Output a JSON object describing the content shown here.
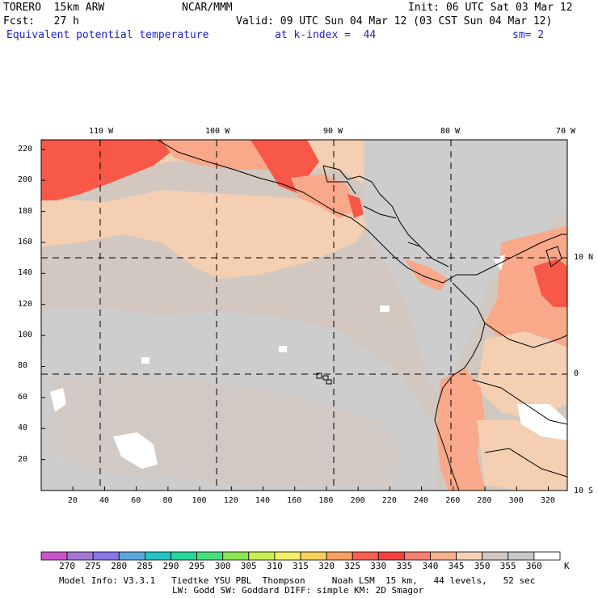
{
  "header": {
    "model": "TORERO  15km ARW",
    "center": "NCAR/MMM",
    "init": "Init: 06 UTC Sat 03 Mar 12",
    "fcst": "Fcst:   27 h",
    "valid": "Valid: 09 UTC Sun 04 Mar 12 (03 CST Sun 04 Mar 12)",
    "field": "Equivalent potential temperature",
    "level": "at k-index =  44",
    "smoothing": "sm= 2"
  },
  "axes": {
    "top_labels": [
      "110 W",
      "100 W",
      "90 W",
      "80 W",
      "70 W"
    ],
    "right_labels": [
      "10 N",
      "0",
      "10 S"
    ],
    "left_ticks": [
      "220",
      "200",
      "180",
      "160",
      "140",
      "120",
      "100",
      "80",
      "60",
      "40",
      "20"
    ],
    "bottom_ticks": [
      "20",
      "40",
      "60",
      "80",
      "100",
      "120",
      "140",
      "160",
      "180",
      "200",
      "220",
      "240",
      "260",
      "280",
      "300",
      "320"
    ]
  },
  "colorbar": {
    "labels": [
      "270",
      "275",
      "280",
      "285",
      "290",
      "295",
      "300",
      "305",
      "310",
      "315",
      "320",
      "325",
      "330",
      "335",
      "340",
      "345",
      "350",
      "355",
      "360"
    ],
    "unit": "K",
    "colors": [
      "#cc55cc",
      "#a277d6",
      "#8877e6",
      "#5aa8e0",
      "#22c4c4",
      "#22d89a",
      "#44e07a",
      "#88e655",
      "#ccee55",
      "#f0f066",
      "#f8d05a",
      "#f8a060",
      "#f86050",
      "#f84040",
      "#f88070",
      "#f8b090",
      "#f5d0b5",
      "#d0c8c0",
      "#c8c8c8",
      "#ffffff"
    ]
  },
  "map_colors": {
    "bg": "#d2c8c0",
    "peach": "#f4cfb2",
    "salmon": "#f9a88a",
    "red": "#f85848",
    "grey": "#cdcdcd",
    "white": "#ffffff"
  },
  "footer": {
    "line1": "Model Info: V3.3.1   Tiedtke YSU PBL  Thompson     Noah LSM  15 km,   44 levels,   52 sec",
    "line2": "LW: Godd SW: Goddard DIFF: simple KM: 2D Smagor"
  }
}
